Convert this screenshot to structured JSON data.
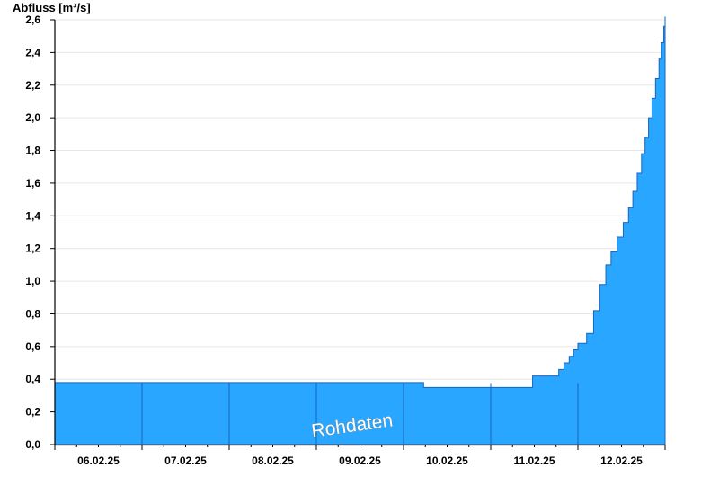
{
  "chart_data": {
    "type": "area",
    "ylabel": "Abfluss [m³/s]",
    "ylim": [
      0,
      2.6
    ],
    "yticks": [
      "0,0",
      "0,2",
      "0,4",
      "0,6",
      "0,8",
      "1,0",
      "1,2",
      "1,4",
      "1,6",
      "1,8",
      "2,0",
      "2,2",
      "2,4",
      "2,6"
    ],
    "yticks_values": [
      0,
      0.2,
      0.4,
      0.6,
      0.8,
      1.0,
      1.2,
      1.4,
      1.6,
      1.8,
      2.0,
      2.2,
      2.4,
      2.6
    ],
    "x_categories": [
      "06.02.25",
      "07.02.25",
      "08.02.25",
      "09.02.25",
      "10.02.25",
      "11.02.25",
      "12.02.25"
    ],
    "x_range_days": [
      6,
      13
    ],
    "grid": true,
    "watermark": "Rohdaten",
    "colors": {
      "fill": "#29a6ff",
      "stroke": "#1565c0",
      "grid": "#e6e6e6",
      "axis": "#000000"
    },
    "series": [
      {
        "x": [
          6.0,
          10.22,
          10.23,
          11.46,
          11.48,
          11.7,
          11.78,
          11.84,
          11.9,
          11.95,
          12.0,
          12.1,
          12.18,
          12.25,
          12.32,
          12.38,
          12.45,
          12.52,
          12.58,
          12.63,
          12.68,
          12.73,
          12.77,
          12.81,
          12.85,
          12.89,
          12.93,
          12.96,
          12.985,
          13.0
        ],
        "y": [
          0.38,
          0.38,
          0.35,
          0.35,
          0.42,
          0.42,
          0.46,
          0.5,
          0.54,
          0.58,
          0.62,
          0.68,
          0.82,
          0.98,
          1.1,
          1.18,
          1.27,
          1.36,
          1.45,
          1.55,
          1.66,
          1.78,
          1.88,
          2.0,
          2.12,
          2.24,
          2.36,
          2.46,
          2.56,
          2.62
        ]
      }
    ]
  }
}
